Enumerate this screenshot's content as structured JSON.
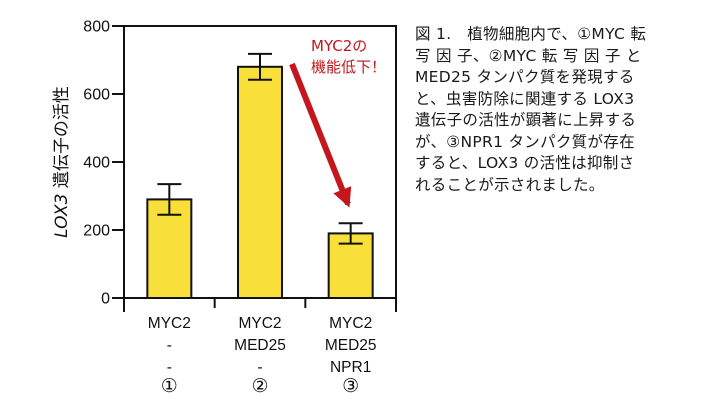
{
  "chart_data": {
    "type": "bar",
    "title": "",
    "ylabel": "LOX3 遺伝子の活性",
    "ylabel_italic_part": "LOX3",
    "ylabel_rest": "遺伝子の活性",
    "xlabel": "",
    "ylim": [
      0,
      800
    ],
    "yticks": [
      0,
      200,
      400,
      600,
      800
    ],
    "grid": false,
    "bar_color": "#f9df3a",
    "categories": [
      {
        "lines": [
          "MYC2",
          "-",
          "-"
        ],
        "marker": "①"
      },
      {
        "lines": [
          "MYC2",
          "MED25",
          "-"
        ],
        "marker": "②"
      },
      {
        "lines": [
          "MYC2",
          "MED25",
          "NPR1"
        ],
        "marker": "③"
      }
    ],
    "values": [
      290,
      680,
      190
    ],
    "errors": [
      45,
      38,
      30
    ],
    "annotation": {
      "text_lines": [
        "MYC2の",
        "機能低下！"
      ],
      "color": "#c4161c",
      "arrow_from_category": 1,
      "arrow_to_category": 2
    }
  },
  "caption": {
    "lines": [
      "図 1.　植物細胞内で、①MYC 転",
      "写 因 子、②MYC 転 写 因 子 と",
      "MED25 タンパク質を発現する",
      "と、虫害防除に関連する LOX3",
      "遺伝子の活性が顕著に上昇する",
      "が、③NPR1 タンパク質が存在",
      "すると、LOX3 の活性は抑制さ",
      "れることが示されました。"
    ]
  }
}
